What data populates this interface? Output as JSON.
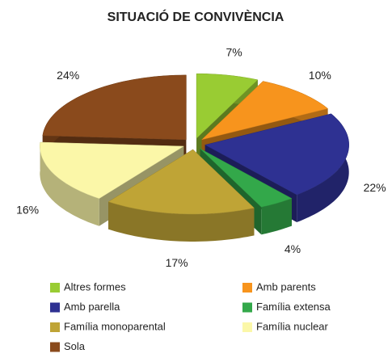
{
  "chart_data": {
    "type": "pie3d",
    "title": "SITUACIÓ DE CONVIVÈNCIA",
    "categories": [
      "Altres formes",
      "Amb parents",
      "Amb parella",
      "Família extensa",
      "Família monoparental",
      "Família nuclear",
      "Sola"
    ],
    "values": [
      7,
      10,
      22,
      4,
      17,
      16,
      24
    ],
    "value_labels": [
      "7%",
      "10%",
      "22%",
      "4%",
      "17%",
      "16%",
      "24%"
    ],
    "colors": [
      "#99cc33",
      "#f7941d",
      "#2e3192",
      "#33a84a",
      "#bfa436",
      "#fbf7a8",
      "#8a4a1c"
    ]
  }
}
